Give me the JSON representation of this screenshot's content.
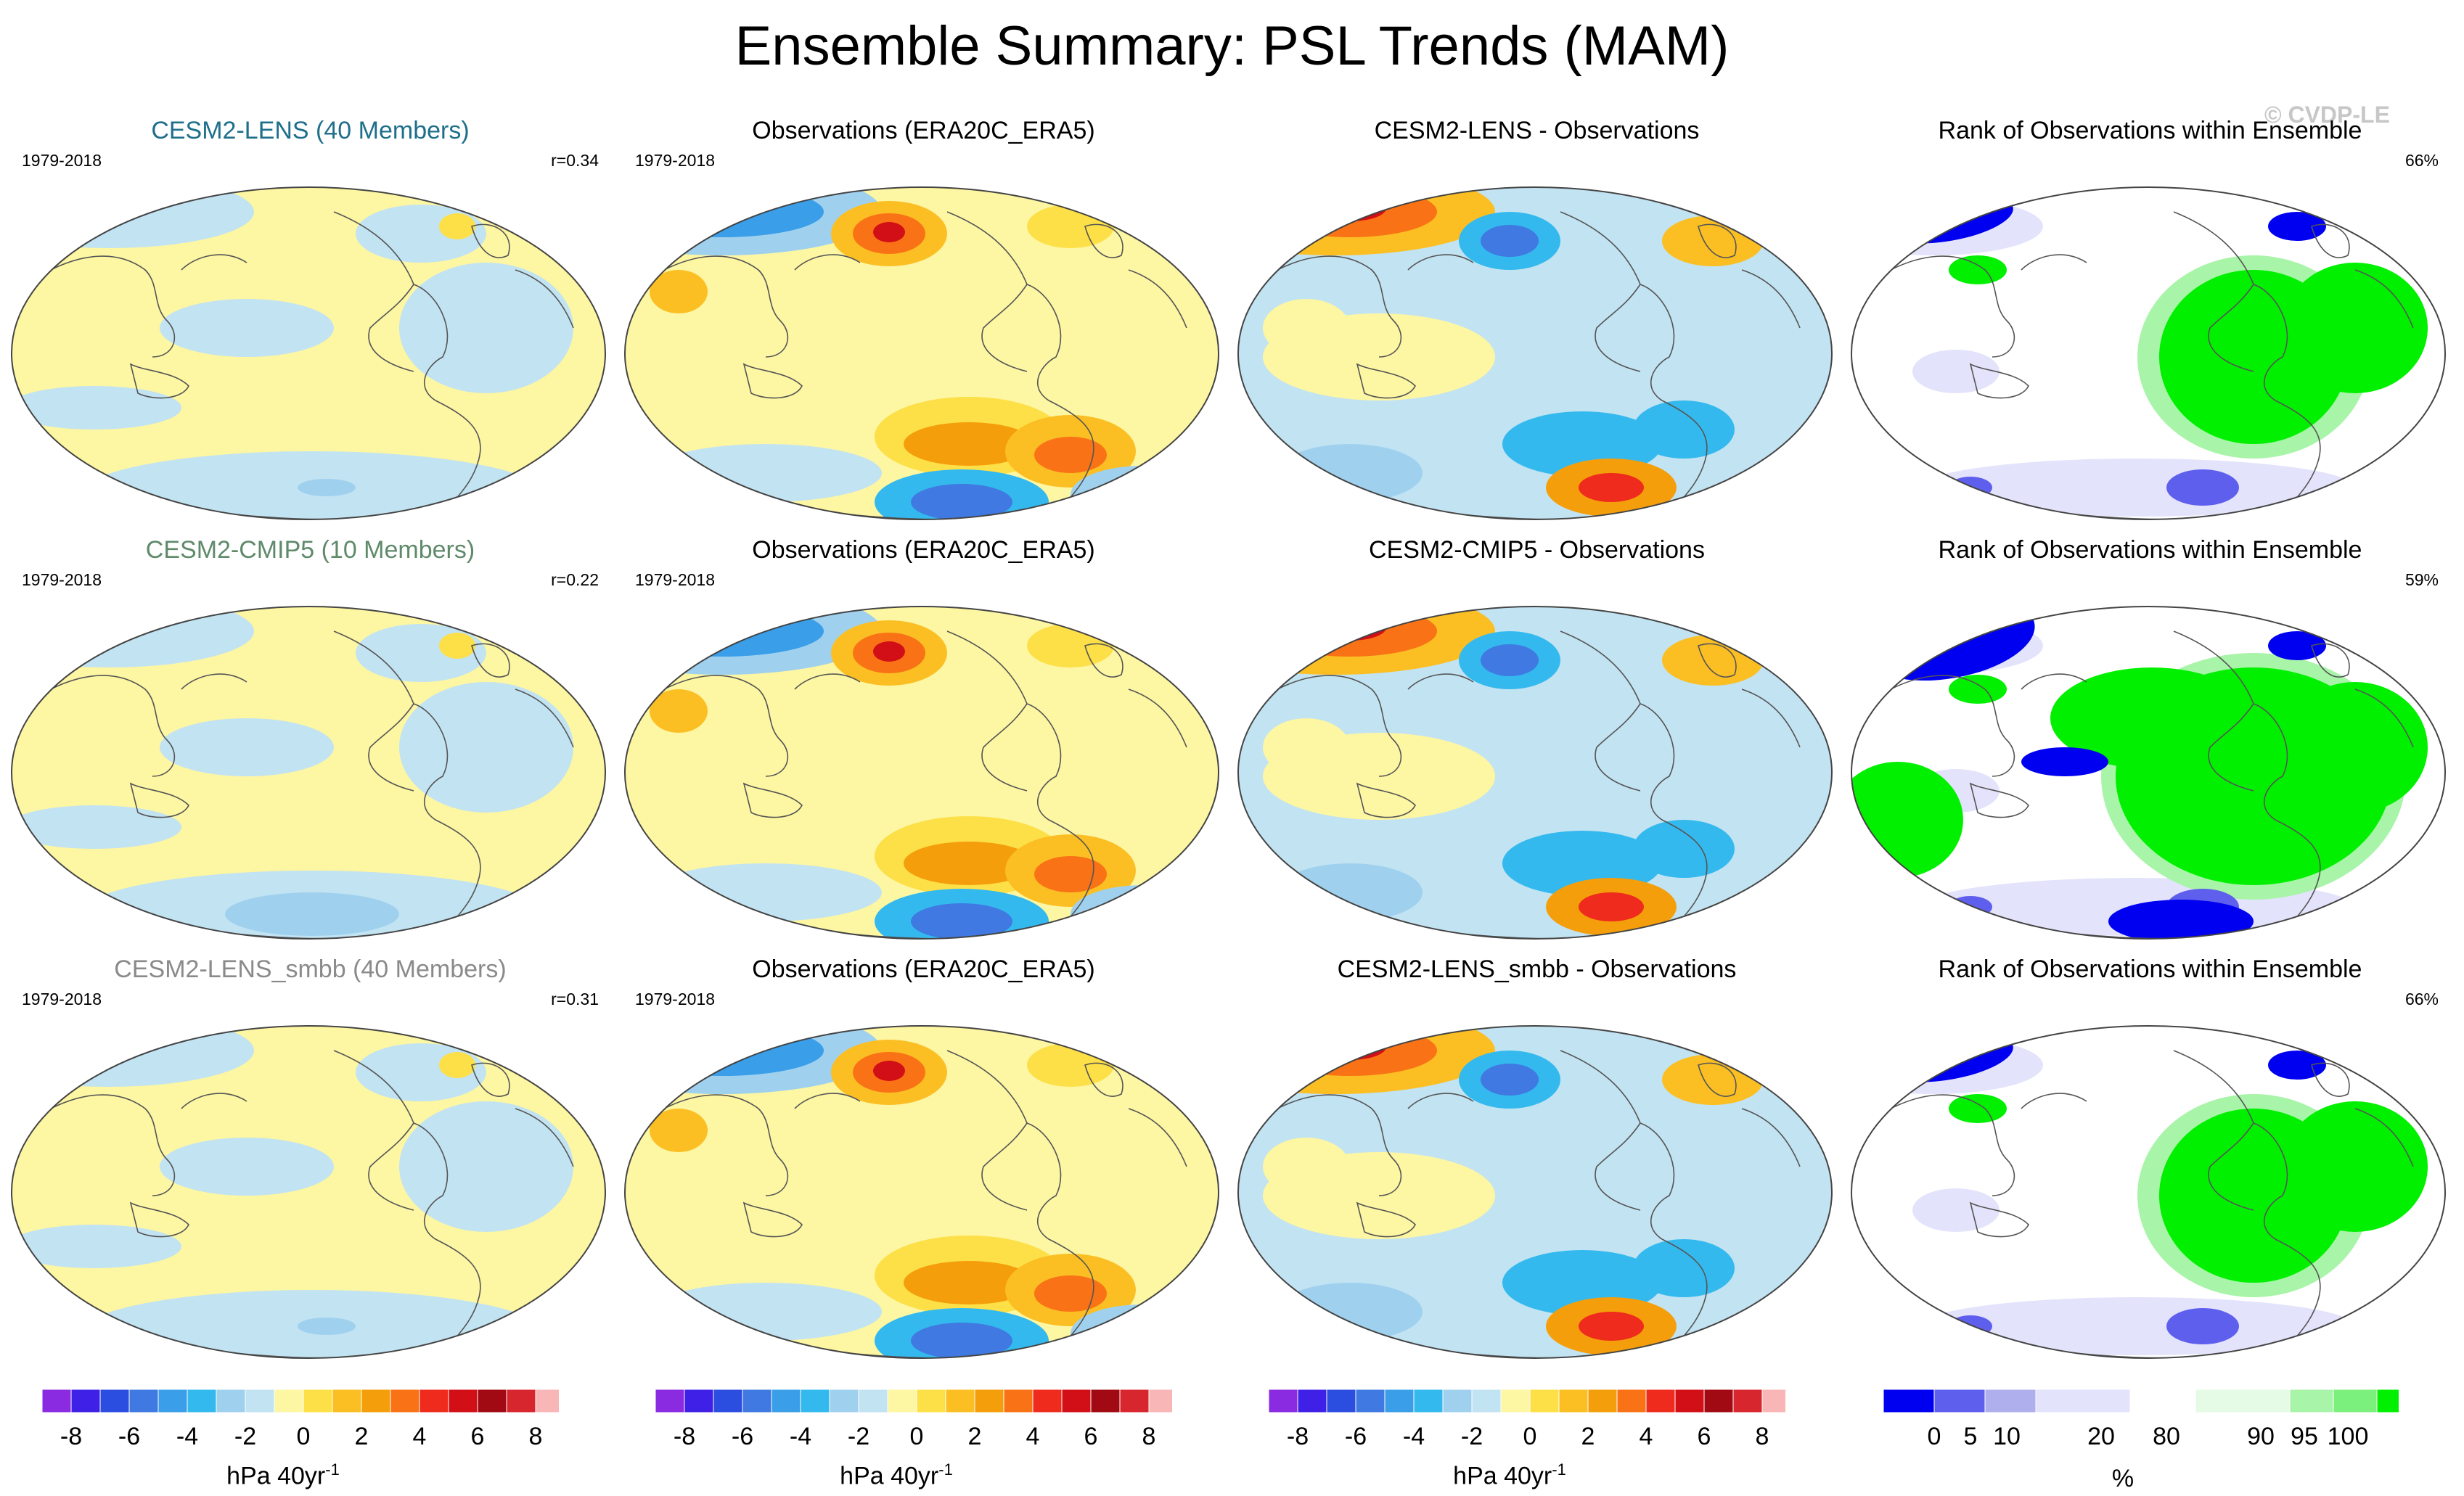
{
  "title": "Ensemble Summary: PSL Trends (MAM)",
  "watermark": "© CVDP-LE",
  "colors": {
    "trend_bins": [
      "#8a2be2",
      "#3f20e6",
      "#2b4de0",
      "#3f79e1",
      "#3a9ee8",
      "#34b9ee",
      "#9fd1ef",
      "#c2e3f2",
      "#fdf6a3",
      "#fde047",
      "#fbbf24",
      "#f59e0b",
      "#f97316",
      "#ee2b1c",
      "#d20e16",
      "#a10a12",
      "#d8262f",
      "#f9b6b6"
    ],
    "rank_bins": [
      "#0000f0",
      "#5f5fee",
      "#afafee",
      "#e3e3fb",
      "#ffffff",
      "#e5fbe5",
      "#a8f4a8",
      "#7cf07c",
      "#00f000"
    ],
    "map_background": "#c2e3f2"
  },
  "rows": [
    {
      "model": {
        "title": "CESM2-LENS (40 Members)",
        "title_color": "#1f6f8b",
        "period": "1979-2018",
        "stat": "r=0.34"
      },
      "obs": {
        "title": "Observations (ERA20C_ERA5)",
        "period": "1979-2018"
      },
      "diff": {
        "title": "CESM2-LENS - Observations"
      },
      "rank": {
        "title": "Rank of Observations within Ensemble",
        "stat": "66%"
      }
    },
    {
      "model": {
        "title": "CESM2-CMIP5 (10 Members)",
        "title_color": "#5f8a6a",
        "period": "1979-2018",
        "stat": "r=0.22"
      },
      "obs": {
        "title": "Observations (ERA20C_ERA5)",
        "period": "1979-2018"
      },
      "diff": {
        "title": "CESM2-CMIP5 - Observations"
      },
      "rank": {
        "title": "Rank of Observations within Ensemble",
        "stat": "59%"
      }
    },
    {
      "model": {
        "title": "CESM2-LENS_smbb (40 Members)",
        "title_color": "#8a8a8a",
        "period": "1979-2018",
        "stat": "r=0.31"
      },
      "obs": {
        "title": "Observations (ERA20C_ERA5)",
        "period": "1979-2018"
      },
      "diff": {
        "title": "CESM2-LENS_smbb - Observations"
      },
      "rank": {
        "title": "Rank of Observations within Ensemble",
        "stat": "66%"
      }
    }
  ],
  "colorbars": {
    "trend": {
      "ticks": [
        "-8",
        "-6",
        "-4",
        "-2",
        "0",
        "2",
        "4",
        "6",
        "8"
      ],
      "unit": "hPa 40yr",
      "unit_exp": "-1"
    },
    "rank": {
      "ticks": [
        "0",
        "5",
        "10",
        "20",
        "80",
        "90",
        "95",
        "100"
      ],
      "unit": "%"
    }
  }
}
